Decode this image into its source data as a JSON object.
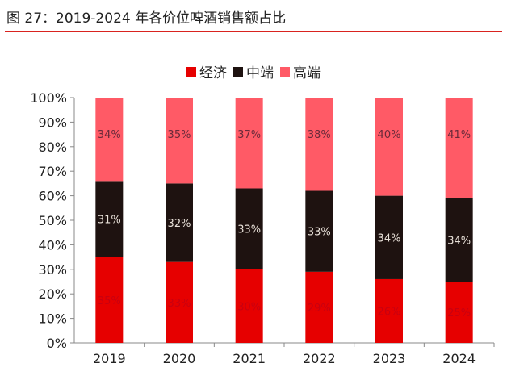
{
  "title": "图 27：2019-2024 年各价位啤酒销售额占比",
  "chart_data": {
    "type": "bar",
    "stacked": true,
    "categories": [
      "2019",
      "2020",
      "2021",
      "2022",
      "2023",
      "2024"
    ],
    "series": [
      {
        "name": "经济",
        "color": "#e60000",
        "values": [
          35,
          33,
          30,
          29,
          26,
          25
        ]
      },
      {
        "name": "中端",
        "color": "#1e1210",
        "values": [
          31,
          32,
          33,
          33,
          34,
          34
        ]
      },
      {
        "name": "高端",
        "color": "#ff5a66",
        "values": [
          34,
          35,
          37,
          38,
          40,
          41
        ]
      }
    ],
    "yticks": [
      "0%",
      "10%",
      "20%",
      "30%",
      "40%",
      "50%",
      "60%",
      "70%",
      "80%",
      "90%",
      "100%"
    ],
    "ylim": [
      0,
      100
    ],
    "legend_position": "top",
    "grid": false
  }
}
